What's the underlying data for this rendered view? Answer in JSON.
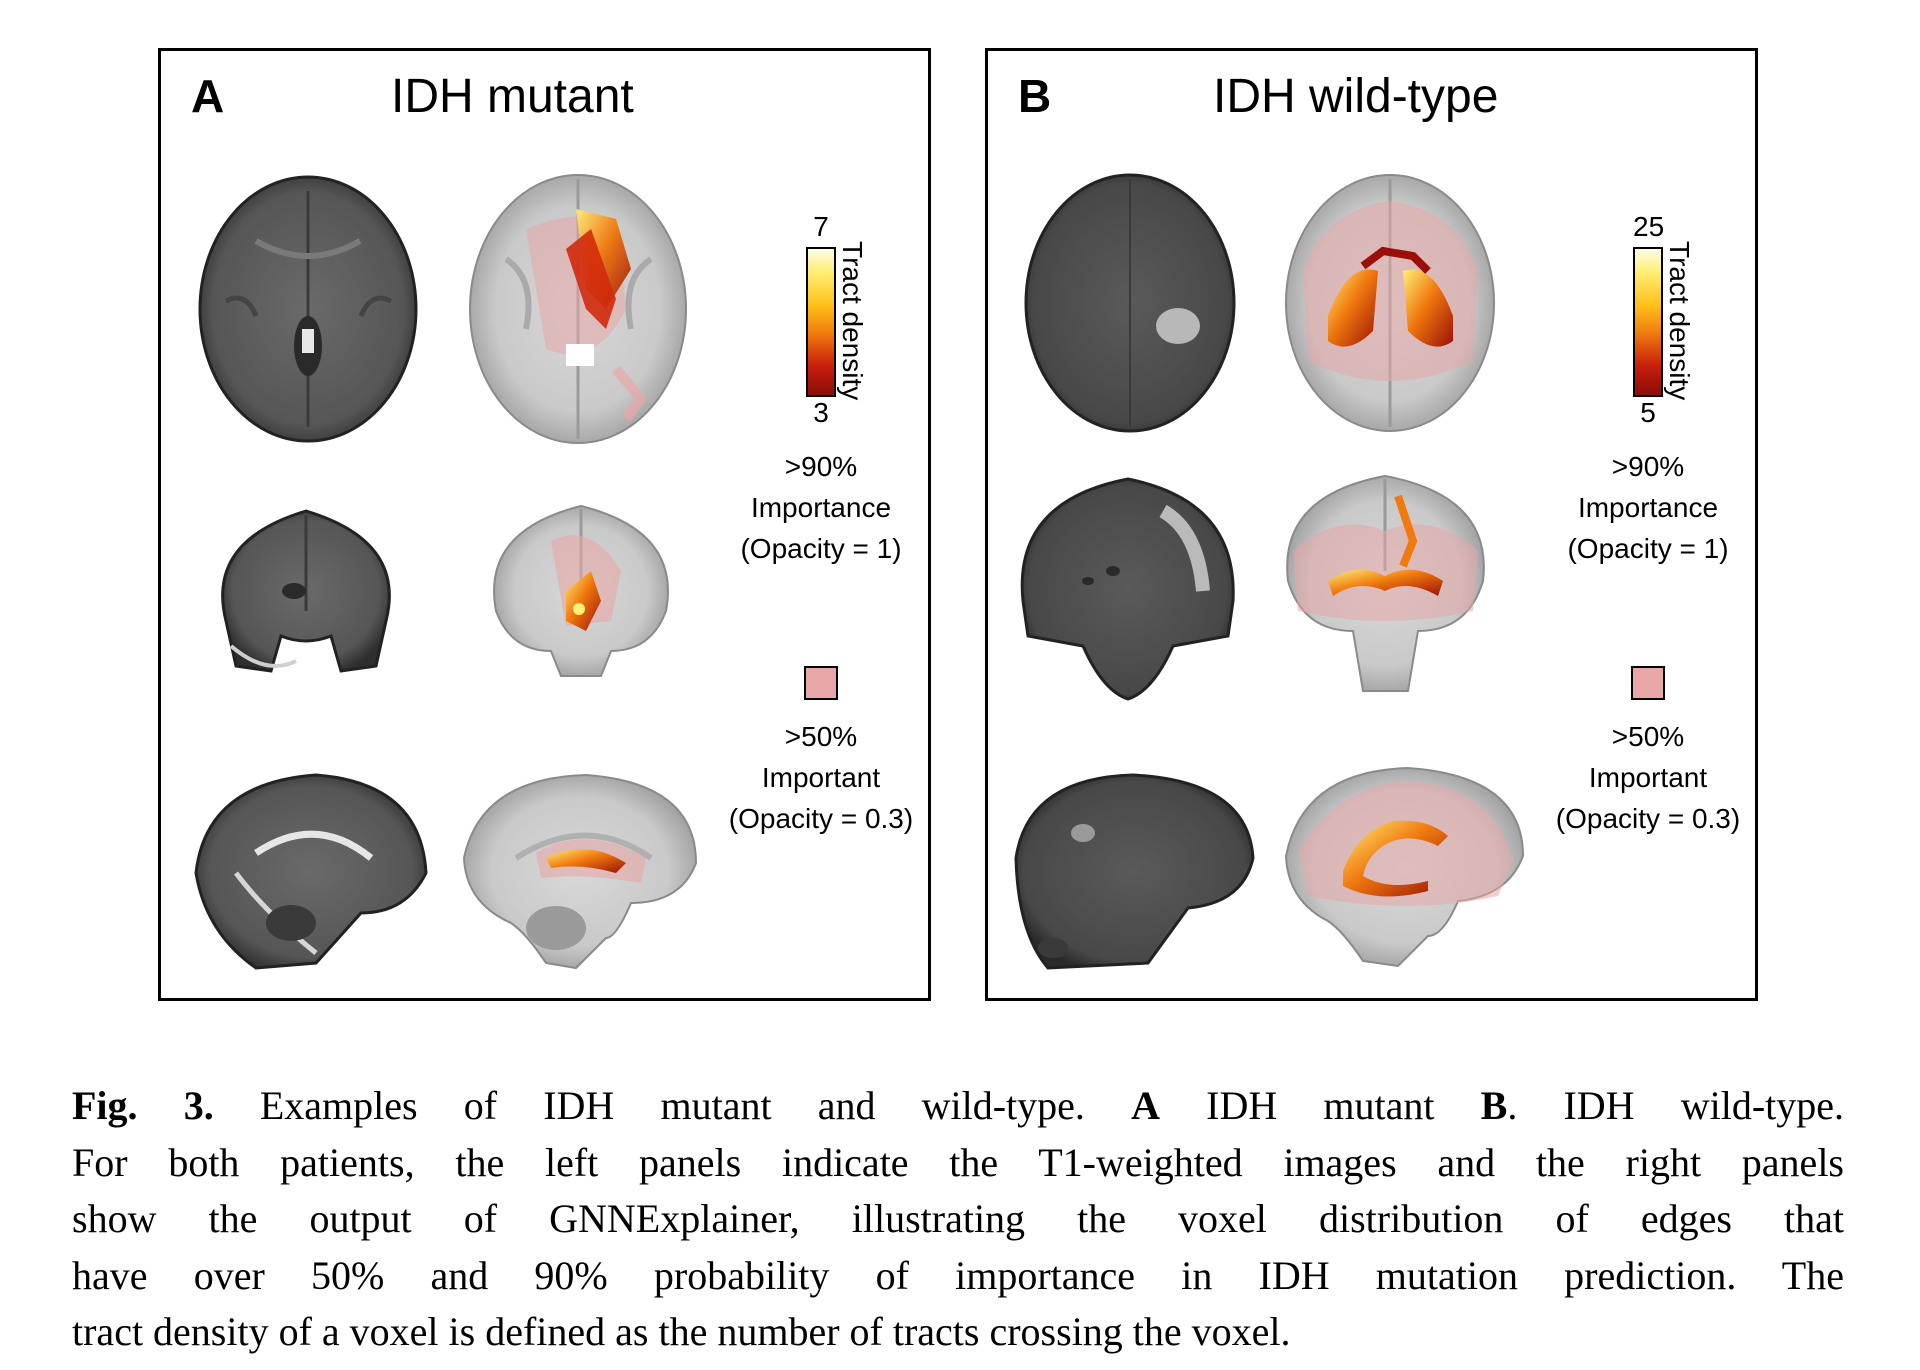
{
  "panels": [
    {
      "letter": "A",
      "title": "IDH mutant",
      "colorbar": {
        "max": "7",
        "min": "3",
        "label": "Tract density"
      },
      "legend_high": [
        "&gt;90%",
        "Importance",
        "(Opacity = 1)"
      ],
      "legend_low": [
        "&gt;50%",
        "Important",
        "(Opacity = 0.3)"
      ]
    },
    {
      "letter": "B",
      "title": "IDH wild-type",
      "colorbar": {
        "max": "25",
        "min": "5",
        "label": "Tract density"
      },
      "legend_high": [
        "&gt;90%",
        "Importance",
        "(Opacity = 1)"
      ],
      "legend_low": [
        "&gt;50%",
        "Important",
        "(Opacity = 0.3)"
      ]
    }
  ],
  "caption": {
    "fig_label": "Fig. 3.",
    "seg1": " Examples of IDH mutant and wild-type. ",
    "bold_a": "A",
    "seg2": " IDH mutant ",
    "bold_b": "B",
    "seg3": ". IDH wild-type.",
    "line2": "For both patients, the left panels indicate the T1-weighted images and the right panels",
    "line3": "show the output of GNNExplainer, illustrating the voxel distribution of edges that",
    "line4": "have over 50% and 90% probability of importance in IDH mutation prediction. The",
    "line5": "tract density of a voxel is defined as the number of tracts crossing the voxel."
  },
  "colors": {
    "heat_high": "#fff07a",
    "heat_mid": "#f07a0e",
    "heat_low": "#8a0d08",
    "importance_50_pink": "#e8a7a7"
  }
}
